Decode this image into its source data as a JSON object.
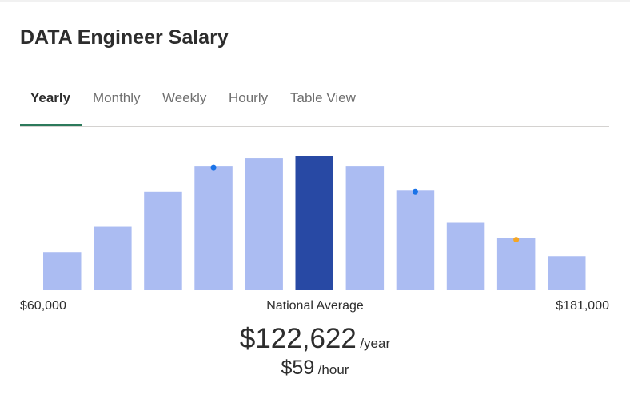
{
  "title": "DATA Engineer Salary",
  "tabs": [
    {
      "label": "Yearly",
      "active": true
    },
    {
      "label": "Monthly",
      "active": false
    },
    {
      "label": "Weekly",
      "active": false
    },
    {
      "label": "Hourly",
      "active": false
    },
    {
      "label": "Table View",
      "active": false
    }
  ],
  "colors": {
    "bar": "#abbcf2",
    "highlight_bar": "#2849a4",
    "tab_underline": "#2c7a5b",
    "marker_blue": "#1a73e8",
    "marker_orange": "#f5a623"
  },
  "chart_data": {
    "type": "bar",
    "title": "",
    "xlabel": "",
    "ylabel": "",
    "values": [
      19,
      32,
      49,
      62,
      66,
      67,
      62,
      50,
      34,
      26,
      17
    ],
    "ylim": [
      0,
      70
    ],
    "highlight_index": 5,
    "markers": [
      {
        "bar_index": 3,
        "color": "blue"
      },
      {
        "bar_index": 7,
        "color": "blue"
      },
      {
        "bar_index": 9,
        "color": "orange"
      }
    ]
  },
  "range": {
    "min_label": "$60,000",
    "max_label": "$181,000",
    "center_label": "National Average"
  },
  "salary": {
    "yearly_amount": "$122,622",
    "yearly_unit": "/year",
    "hourly_amount": "$59",
    "hourly_unit": "/hour"
  }
}
